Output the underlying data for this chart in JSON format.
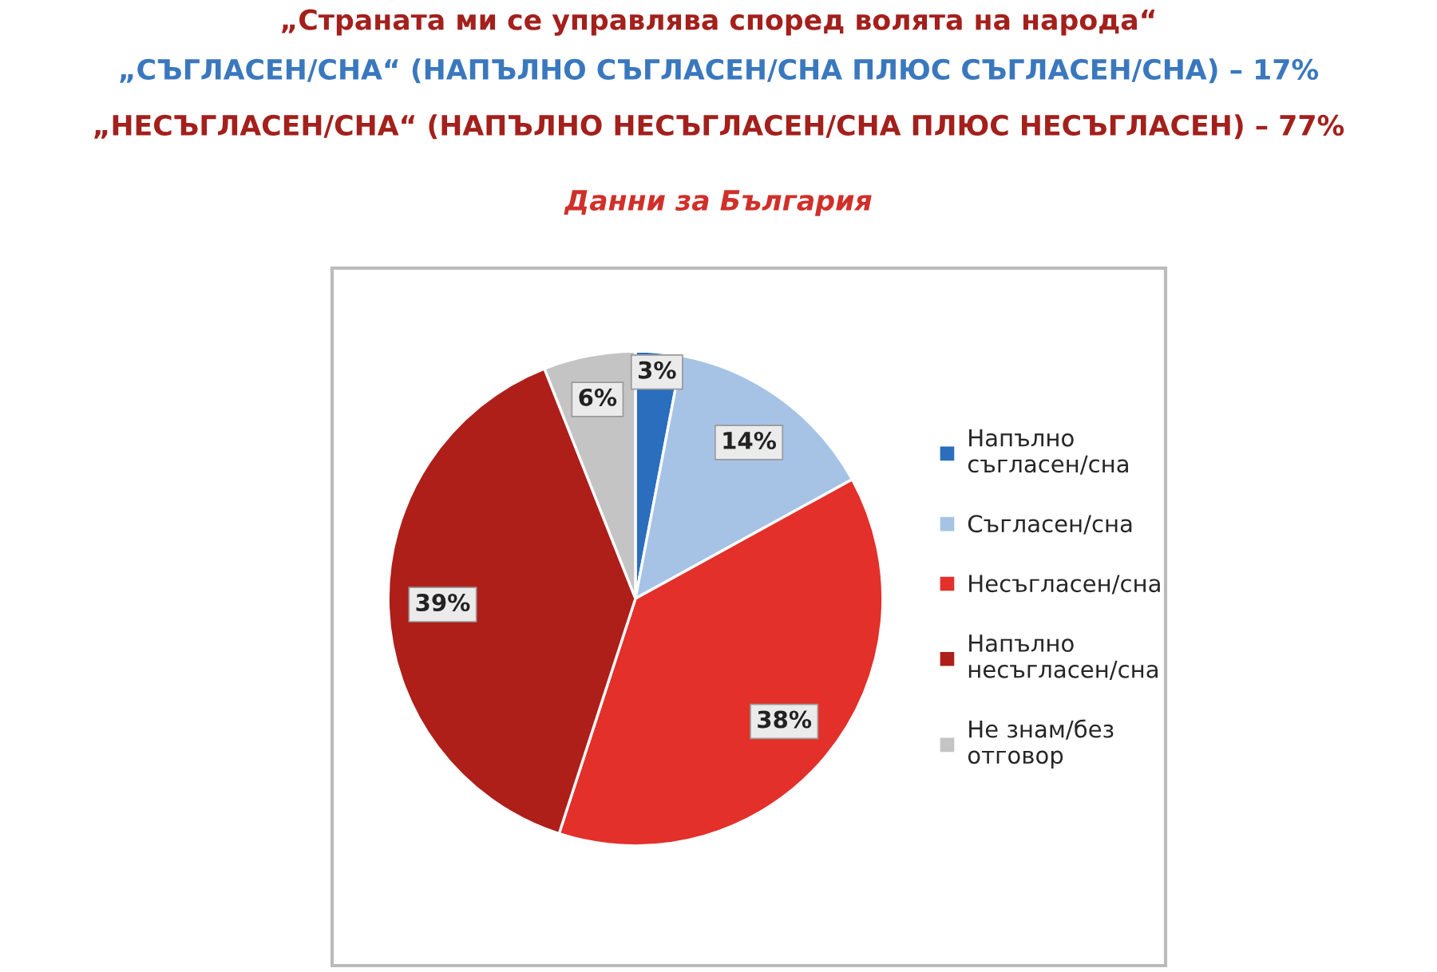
{
  "chart_data": {
    "type": "pie",
    "title": "„Страната ми се управлява според волята на народа“",
    "subtitle": "„СЪГЛАСЕН/СНА“ (НАПЪЛНО СЪГЛАСЕН/СНА ПЛЮС СЪГЛАСЕН/СНА) – 17%",
    "annotations": [
      "„НЕСЪГЛАСЕН/СНА“ (НАПЪЛНО НЕСЪГЛАСЕН/СНА ПЛЮС НЕСЪГЛАСЕН) – 77%",
      "Данни за България"
    ],
    "categories": [
      "Напълно съгласен/сна",
      "Съгласен/сна",
      "Несъгласен/сна",
      "Напълно несъгласен/сна",
      "Не знам/без отговор"
    ],
    "values": [
      3,
      14,
      38,
      39,
      6
    ],
    "colors": [
      "#2a6ebd",
      "#a6c3e6",
      "#e3302a",
      "#ae1f1a",
      "#c4c4c4"
    ],
    "value_labels": [
      "3%",
      "14%",
      "38%",
      "39%",
      "6%"
    ],
    "legend": "right"
  }
}
